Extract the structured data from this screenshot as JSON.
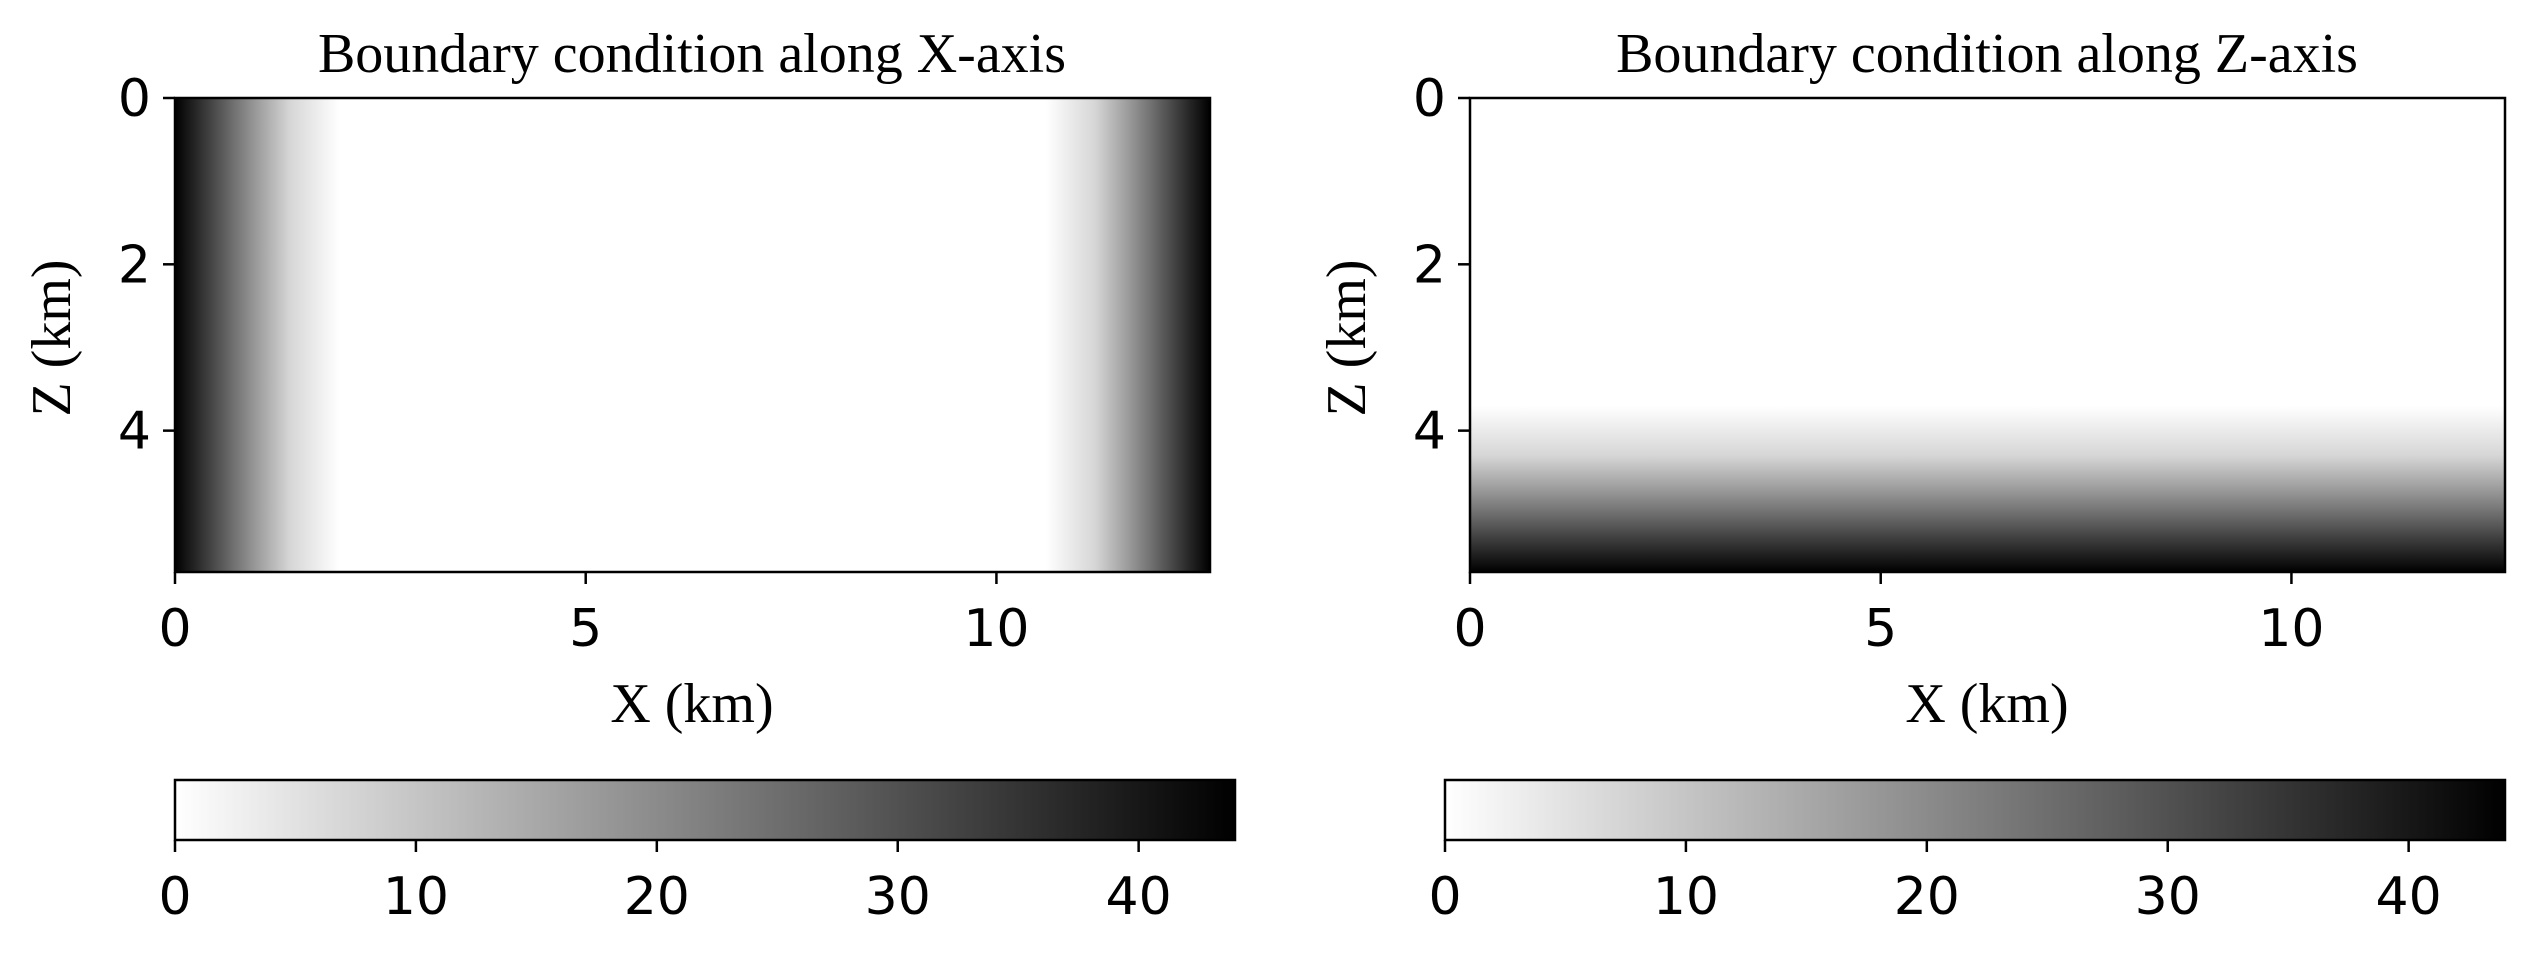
{
  "chart_data": [
    {
      "type": "heatmap",
      "title": "Boundary condition along X-axis",
      "xlabel": "X (km)",
      "ylabel": "Z (km)",
      "xlim": [
        0,
        12.6
      ],
      "ylim": [
        5.7,
        0
      ],
      "x_ticks": [
        0,
        5,
        10
      ],
      "x_tick_labels": [
        "0",
        "5",
        "10"
      ],
      "y_ticks": [
        0,
        2,
        4
      ],
      "y_tick_labels": [
        "0",
        "2",
        "4"
      ],
      "colormap": "white-to-black (gray_r)",
      "value_range": [
        0,
        44
      ],
      "gradient_axis": "x",
      "profile": [
        {
          "pos": 0,
          "value": 44
        },
        {
          "pos": 0.3,
          "value": 36
        },
        {
          "pos": 0.7,
          "value": 25
        },
        {
          "pos": 1.0,
          "value": 17
        },
        {
          "pos": 1.4,
          "value": 7
        },
        {
          "pos": 2.0,
          "value": 0
        },
        {
          "pos": 10.6,
          "value": 0
        },
        {
          "pos": 11.2,
          "value": 7
        },
        {
          "pos": 11.6,
          "value": 17
        },
        {
          "pos": 11.9,
          "value": 25
        },
        {
          "pos": 12.3,
          "value": 36
        },
        {
          "pos": 12.6,
          "value": 44
        }
      ]
    },
    {
      "type": "heatmap",
      "title": "Boundary condition along Z-axis",
      "xlabel": "X (km)",
      "ylabel": "Z (km)",
      "xlim": [
        0,
        12.6
      ],
      "ylim": [
        5.7,
        0
      ],
      "x_ticks": [
        0,
        5,
        10
      ],
      "x_tick_labels": [
        "0",
        "5",
        "10"
      ],
      "y_ticks": [
        0,
        2,
        4
      ],
      "y_tick_labels": [
        "0",
        "2",
        "4"
      ],
      "colormap": "white-to-black (gray_r)",
      "value_range": [
        0,
        44
      ],
      "gradient_axis": "z",
      "profile": [
        {
          "pos": 0,
          "value": 0
        },
        {
          "pos": 3.7,
          "value": 0
        },
        {
          "pos": 4.3,
          "value": 7
        },
        {
          "pos": 4.7,
          "value": 17
        },
        {
          "pos": 5.0,
          "value": 25
        },
        {
          "pos": 5.4,
          "value": 36
        },
        {
          "pos": 5.7,
          "value": 44
        }
      ]
    }
  ],
  "colorbars": [
    {
      "min": 0,
      "max": 44,
      "ticks": [
        0,
        10,
        20,
        30,
        40
      ],
      "tick_labels": [
        "0",
        "10",
        "20",
        "30",
        "40"
      ]
    },
    {
      "min": 0,
      "max": 44,
      "ticks": [
        0,
        10,
        20,
        30,
        40
      ],
      "tick_labels": [
        "0",
        "10",
        "20",
        "30",
        "40"
      ]
    }
  ]
}
